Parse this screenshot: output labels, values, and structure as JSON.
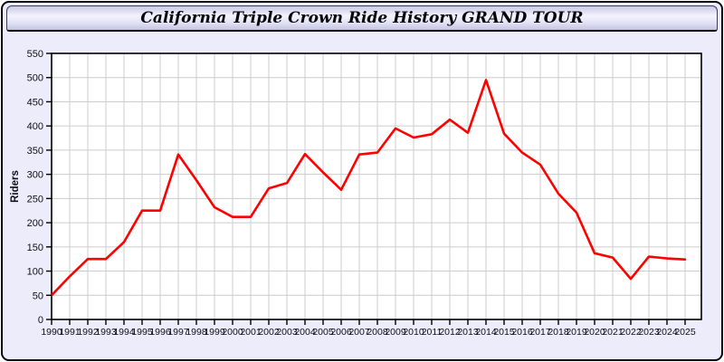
{
  "window": {
    "title": "California Triple Crown Ride History GRAND TOUR"
  },
  "colors": {
    "line": "#ff0000",
    "plot_background": "#ffffff",
    "grid": "#cccccc",
    "axis": "#000000",
    "panel_background": "#ececfa",
    "titlebar_gradient_top": "#c9c9e6",
    "titlebar_gradient_bottom": "#c3c3e0",
    "text": "#101018"
  },
  "chart_data": {
    "type": "line",
    "title": "California Triple Crown Ride History GRAND TOUR",
    "xlabel": "",
    "ylabel": "Riders",
    "ylim": [
      0,
      550
    ],
    "ytick_step": 50,
    "grid": true,
    "legend": "none",
    "x": [
      1990,
      1991,
      1992,
      1993,
      1994,
      1995,
      1996,
      1997,
      1998,
      1999,
      2000,
      2001,
      2002,
      2003,
      2004,
      2005,
      2006,
      2007,
      2008,
      2009,
      2010,
      2011,
      2012,
      2013,
      2014,
      2015,
      2016,
      2017,
      2018,
      2019,
      2020,
      2021,
      2022,
      2023,
      2024,
      2025
    ],
    "series": [
      {
        "name": "Riders",
        "color": "#ff0000",
        "values": [
          50,
          89,
          125,
          125,
          160,
          225,
          225,
          341,
          288,
          232,
          212,
          212,
          271,
          282,
          342,
          304,
          268,
          341,
          345,
          395,
          376,
          383,
          413,
          386,
          495,
          384,
          345,
          320,
          260,
          221,
          137,
          128,
          84,
          130,
          126,
          124
        ]
      }
    ]
  }
}
